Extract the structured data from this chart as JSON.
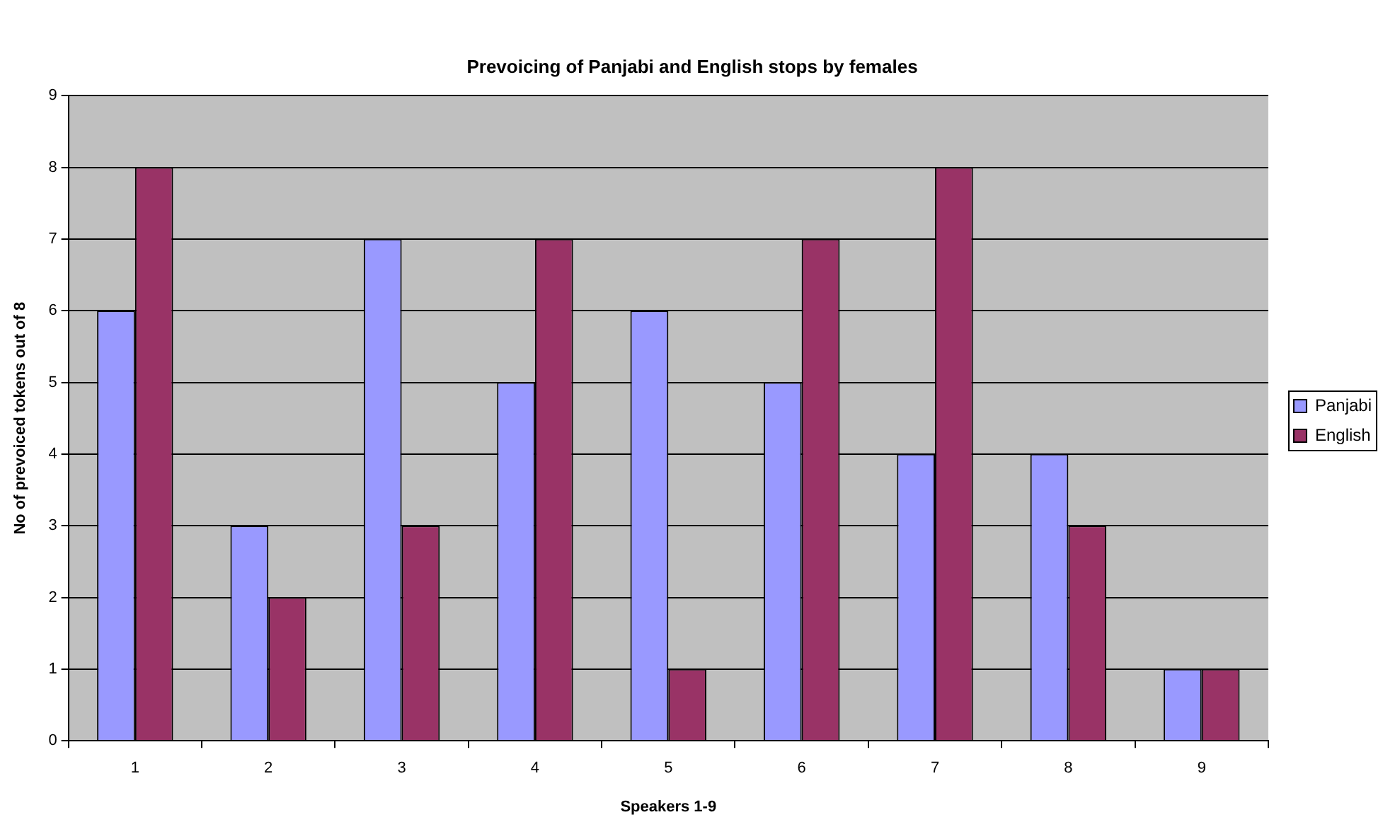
{
  "chart_data": {
    "type": "bar",
    "title": "Prevoicing of Panjabi and English stops by females",
    "xlabel": "Speakers 1-9",
    "ylabel": "No of prevoiced tokens out of 8",
    "categories": [
      "1",
      "2",
      "3",
      "4",
      "5",
      "6",
      "7",
      "8",
      "9"
    ],
    "series": [
      {
        "name": "Panjabi",
        "color": "#9999ff",
        "values": [
          6,
          3,
          7,
          5,
          6,
          5,
          4,
          4,
          1
        ]
      },
      {
        "name": "English",
        "color": "#993366",
        "values": [
          8,
          2,
          3,
          7,
          1,
          7,
          8,
          3,
          1
        ]
      }
    ],
    "ylim": [
      0,
      9
    ],
    "yticks": [
      0,
      1,
      2,
      3,
      4,
      5,
      6,
      7,
      8,
      9
    ],
    "grid": "y",
    "legend": "right"
  }
}
